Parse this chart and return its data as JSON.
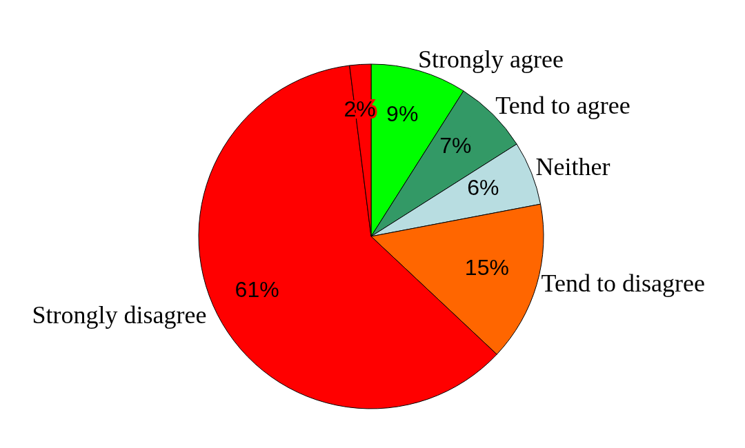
{
  "chart_data": {
    "type": "pie",
    "categories": [
      "Strongly agree",
      "Tend to agree",
      "Neither",
      "Tend to disagree",
      "Strongly disagree",
      null
    ],
    "values": [
      9,
      7,
      6,
      15,
      61,
      2
    ],
    "value_labels": [
      "9%",
      "7%",
      "6%",
      "15%",
      "61%",
      "2%"
    ],
    "colors": [
      "#00ff00",
      "#339966",
      "#b8dde1",
      "#ff6600",
      "#ff0000",
      "#ff0000"
    ],
    "legend": false
  }
}
